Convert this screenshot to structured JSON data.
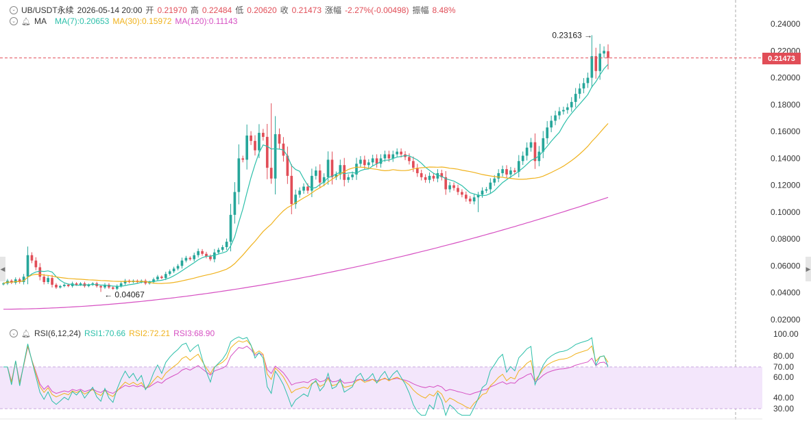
{
  "header": {
    "symbol": "UB/USDT永续",
    "datetime": "2026-05-14 20:00",
    "open_label": "开",
    "open": "0.21970",
    "high_label": "高",
    "high": "0.22484",
    "low_label": "低",
    "low": "0.20620",
    "close_label": "收",
    "close": "0.21473",
    "change_label": "涨幅",
    "change": "-2.27%(-0.00498)",
    "amp_label": "振幅",
    "amp": "8.48%"
  },
  "ma_legend": {
    "name": "MA",
    "ma7": "MA(7):0.20653",
    "ma30": "MA(30):0.15972",
    "ma120": "MA(120):0.11143"
  },
  "rsi_legend": {
    "name": "RSI(6,12,24)",
    "rsi1": "RSI1:70.66",
    "rsi2": "RSI2:72.21",
    "rsi3": "RSI3:68.90"
  },
  "colors": {
    "up": "#26a69a",
    "down": "#e14d57",
    "ma7": "#2bbfa9",
    "ma30": "#f0b21c",
    "ma120": "#d64fc2",
    "rsi_band": "#f3e6fb"
  },
  "current_price": "0.21473",
  "chart_data": {
    "type": "candlestick",
    "price_axis": {
      "ticks": [
        "0.24000",
        "0.22000",
        "0.20000",
        "0.18000",
        "0.16000",
        "0.14000",
        "0.12000",
        "0.10000",
        "0.08000",
        "0.06000",
        "0.04000",
        "0.02000"
      ],
      "ylim": [
        0.0127,
        0.2567
      ]
    },
    "rsi_axis": {
      "ticks": [
        "100.00",
        "80.00",
        "70.00",
        "60.00",
        "40.00",
        "30.00"
      ],
      "ylim": [
        22,
        100
      ],
      "band": [
        30,
        70
      ]
    },
    "annotations": {
      "max_label": "0.23163",
      "min_label": "0.04067"
    },
    "closes": [
      0.047,
      0.049,
      0.0475,
      0.05,
      0.048,
      0.052,
      0.068,
      0.064,
      0.059,
      0.052,
      0.048,
      0.051,
      0.046,
      0.044,
      0.045,
      0.046,
      0.045,
      0.047,
      0.046,
      0.047,
      0.045,
      0.046,
      0.047,
      0.045,
      0.044,
      0.046,
      0.044,
      0.043,
      0.045,
      0.047,
      0.049,
      0.048,
      0.049,
      0.048,
      0.049,
      0.047,
      0.048,
      0.05,
      0.052,
      0.051,
      0.054,
      0.056,
      0.058,
      0.06,
      0.064,
      0.066,
      0.065,
      0.068,
      0.071,
      0.069,
      0.067,
      0.065,
      0.07,
      0.072,
      0.074,
      0.078,
      0.098,
      0.115,
      0.14,
      0.139,
      0.157,
      0.153,
      0.146,
      0.159,
      0.156,
      0.133,
      0.125,
      0.158,
      0.151,
      0.142,
      0.127,
      0.106,
      0.113,
      0.116,
      0.119,
      0.116,
      0.127,
      0.131,
      0.122,
      0.126,
      0.139,
      0.126,
      0.128,
      0.135,
      0.124,
      0.126,
      0.128,
      0.136,
      0.139,
      0.135,
      0.137,
      0.14,
      0.136,
      0.14,
      0.143,
      0.14,
      0.143,
      0.145,
      0.143,
      0.141,
      0.138,
      0.133,
      0.129,
      0.126,
      0.124,
      0.127,
      0.125,
      0.129,
      0.126,
      0.117,
      0.12,
      0.118,
      0.115,
      0.113,
      0.11,
      0.108,
      0.111,
      0.113,
      0.116,
      0.117,
      0.122,
      0.125,
      0.129,
      0.132,
      0.128,
      0.131,
      0.13,
      0.138,
      0.142,
      0.148,
      0.152,
      0.138,
      0.145,
      0.155,
      0.163,
      0.168,
      0.172,
      0.175,
      0.176,
      0.178,
      0.182,
      0.188,
      0.192,
      0.196,
      0.2,
      0.216,
      0.205,
      0.218,
      0.22,
      0.21473
    ],
    "ma7": "7-period moving average of closes",
    "ma30": "30-period moving average of closes",
    "ma120": "120-period moving average of closes",
    "rsi": [
      "RSI(6)",
      "RSI(12)",
      "RSI(24)"
    ]
  }
}
